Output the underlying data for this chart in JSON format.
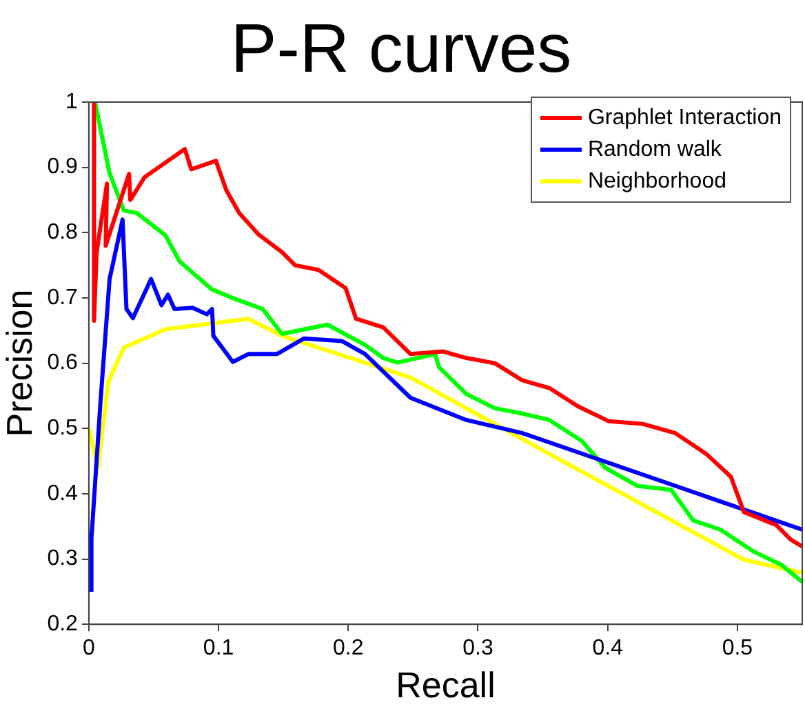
{
  "chart_data": {
    "type": "line",
    "title": "P-R curves",
    "xlabel": "Recall",
    "ylabel": "Precision",
    "xlim": [
      0,
      0.55
    ],
    "ylim": [
      0.2,
      1
    ],
    "xticks": [
      0,
      0.1,
      0.2,
      0.3,
      0.4,
      0.5
    ],
    "yticks": [
      0.2,
      0.3,
      0.4,
      0.5,
      0.6,
      0.7,
      0.8,
      0.9,
      1
    ],
    "grid": false,
    "legend": "top right",
    "marker": "none",
    "line_style": "solid",
    "series": [
      {
        "name": "Graphlet Interaction",
        "color": "#ff0000",
        "x": [
          0.004,
          0.004,
          0.006,
          0.014,
          0.013,
          0.031,
          0.032,
          0.043,
          0.074,
          0.079,
          0.098,
          0.106,
          0.116,
          0.131,
          0.149,
          0.159,
          0.177,
          0.198,
          0.206,
          0.227,
          0.248,
          0.273,
          0.291,
          0.313,
          0.334,
          0.355,
          0.377,
          0.401,
          0.427,
          0.452,
          0.476,
          0.495,
          0.505,
          0.53,
          0.541,
          0.55
        ],
        "values": [
          1.0,
          0.665,
          0.77,
          0.875,
          0.78,
          0.89,
          0.85,
          0.885,
          0.928,
          0.897,
          0.91,
          0.865,
          0.83,
          0.797,
          0.77,
          0.75,
          0.743,
          0.715,
          0.668,
          0.655,
          0.614,
          0.618,
          0.608,
          0.6,
          0.574,
          0.562,
          0.534,
          0.511,
          0.507,
          0.493,
          0.461,
          0.426,
          0.372,
          0.352,
          0.33,
          0.319
        ]
      },
      {
        "name": "Random walk",
        "color": "#0000ff",
        "x": [
          0.002,
          0.002,
          0.009,
          0.016,
          0.026,
          0.029,
          0.034,
          0.048,
          0.056,
          0.061,
          0.066,
          0.08,
          0.091,
          0.095,
          0.096,
          0.111,
          0.123,
          0.145,
          0.166,
          0.195,
          0.213,
          0.248,
          0.291,
          0.334,
          0.55
        ],
        "values": [
          0.25,
          0.331,
          0.541,
          0.729,
          0.82,
          0.683,
          0.669,
          0.729,
          0.689,
          0.705,
          0.683,
          0.685,
          0.675,
          0.683,
          0.642,
          0.602,
          0.614,
          0.614,
          0.638,
          0.634,
          0.614,
          0.547,
          0.513,
          0.493,
          0.345
        ]
      },
      {
        "color": "#00ff00",
        "x": [
          0.005,
          0.016,
          0.027,
          0.037,
          0.059,
          0.07,
          0.095,
          0.112,
          0.134,
          0.149,
          0.184,
          0.213,
          0.227,
          0.238,
          0.267,
          0.27,
          0.291,
          0.313,
          0.334,
          0.355,
          0.38,
          0.398,
          0.423,
          0.449,
          0.466,
          0.487,
          0.513,
          0.534,
          0.55
        ],
        "values": [
          0.998,
          0.891,
          0.834,
          0.83,
          0.796,
          0.756,
          0.713,
          0.699,
          0.683,
          0.645,
          0.659,
          0.628,
          0.608,
          0.601,
          0.614,
          0.594,
          0.553,
          0.531,
          0.523,
          0.513,
          0.481,
          0.44,
          0.412,
          0.406,
          0.359,
          0.345,
          0.311,
          0.291,
          0.265
        ]
      },
      {
        "name": "Neighborhood",
        "color": "#ffff00",
        "x": [
          0.0,
          0.007,
          0.015,
          0.027,
          0.059,
          0.123,
          0.149,
          0.248,
          0.355,
          0.505,
          0.55
        ],
        "values": [
          0.501,
          0.44,
          0.571,
          0.624,
          0.652,
          0.668,
          0.642,
          0.578,
          0.461,
          0.299,
          0.279
        ]
      }
    ]
  }
}
